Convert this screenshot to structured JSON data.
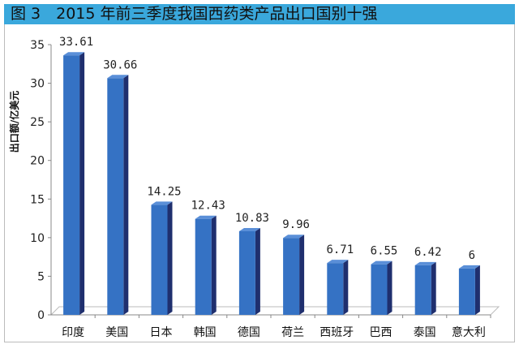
{
  "chart_data": {
    "type": "bar",
    "title": "图 3　2015 年前三季度我国西药类产品出口国别十强",
    "ylabel": "出口额/亿美元",
    "xlabel": "",
    "categories": [
      "印度",
      "美国",
      "日本",
      "韩国",
      "德国",
      "荷兰",
      "西班牙",
      "巴西",
      "泰国",
      "意大利"
    ],
    "values": [
      33.61,
      30.66,
      14.25,
      12.43,
      10.83,
      9.96,
      6.71,
      6.55,
      6.42,
      6
    ],
    "data_labels": [
      "33.61",
      "30.66",
      "14.25",
      "12.43",
      "10.83",
      "9.96",
      "6.71",
      "6.55",
      "6.42",
      "6"
    ],
    "ylim": [
      0,
      35
    ],
    "yticks": [
      "0",
      "5",
      "10",
      "15",
      "20",
      "25",
      "30",
      "35"
    ],
    "grid": false,
    "colors": {
      "bar": "#3572c4",
      "bar_side": "#1f2f6e",
      "title_bg": "#3aa8dc"
    }
  }
}
